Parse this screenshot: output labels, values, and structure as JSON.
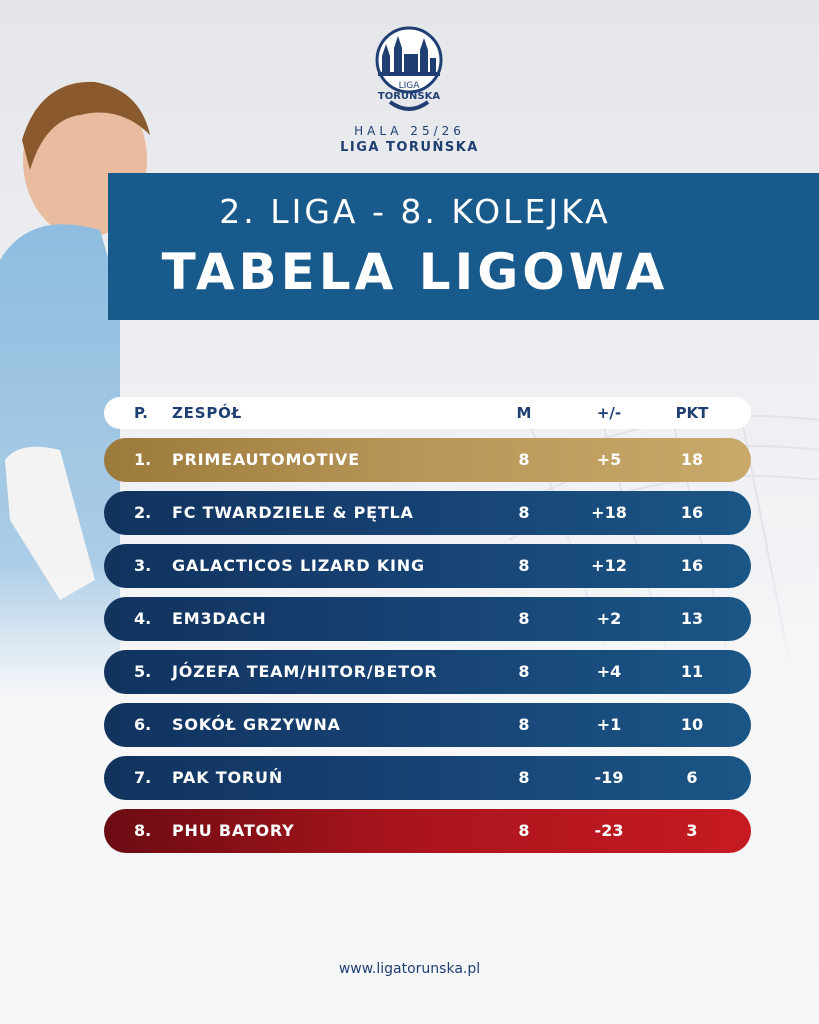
{
  "header": {
    "logo_text_line1": "LIGA",
    "logo_text_line2": "TORUŃSKA",
    "season": "HALA 25/26",
    "league_name": "LIGA TORUŃSKA"
  },
  "banner": {
    "subtitle": "2. LIGA - 8. KOLEJKA",
    "title": "TABELA LIGOWA"
  },
  "table": {
    "columns": {
      "pos": "P.",
      "team": "ZESPÓŁ",
      "matches": "M",
      "diff": "+/-",
      "points": "PKT"
    },
    "rows": [
      {
        "pos": "1.",
        "team": "PRIMEAUTOMOTIVE",
        "matches": "8",
        "diff": "+5",
        "points": "18",
        "style": "gold"
      },
      {
        "pos": "2.",
        "team": "FC TWARDZIELE & PĘTLA",
        "matches": "8",
        "diff": "+18",
        "points": "16",
        "style": "blue"
      },
      {
        "pos": "3.",
        "team": "GALACTICOS LIZARD KING",
        "matches": "8",
        "diff": "+12",
        "points": "16",
        "style": "blue"
      },
      {
        "pos": "4.",
        "team": "EM3DACH",
        "matches": "8",
        "diff": "+2",
        "points": "13",
        "style": "blue"
      },
      {
        "pos": "5.",
        "team": " JÓZEFA TEAM/HITOR/BETOR",
        "matches": "8",
        "diff": "+4",
        "points": "11",
        "style": "blue"
      },
      {
        "pos": "6.",
        "team": "SOKÓŁ GRZYWNA",
        "matches": "8",
        "diff": "+1",
        "points": "10",
        "style": "blue"
      },
      {
        "pos": "7.",
        "team": "PAK TORUŃ",
        "matches": "8",
        "diff": "-19",
        "points": "6",
        "style": "blue"
      },
      {
        "pos": "8.",
        "team": "PHU BATORY",
        "matches": "8",
        "diff": "-23",
        "points": "3",
        "style": "red"
      }
    ]
  },
  "footer": {
    "url": "www.ligatorunska.pl"
  },
  "colors": {
    "primary_blue": "#185a8c",
    "dark_blue": "#1f3f73",
    "gold": "#b8985a",
    "red": "#c71a22"
  }
}
